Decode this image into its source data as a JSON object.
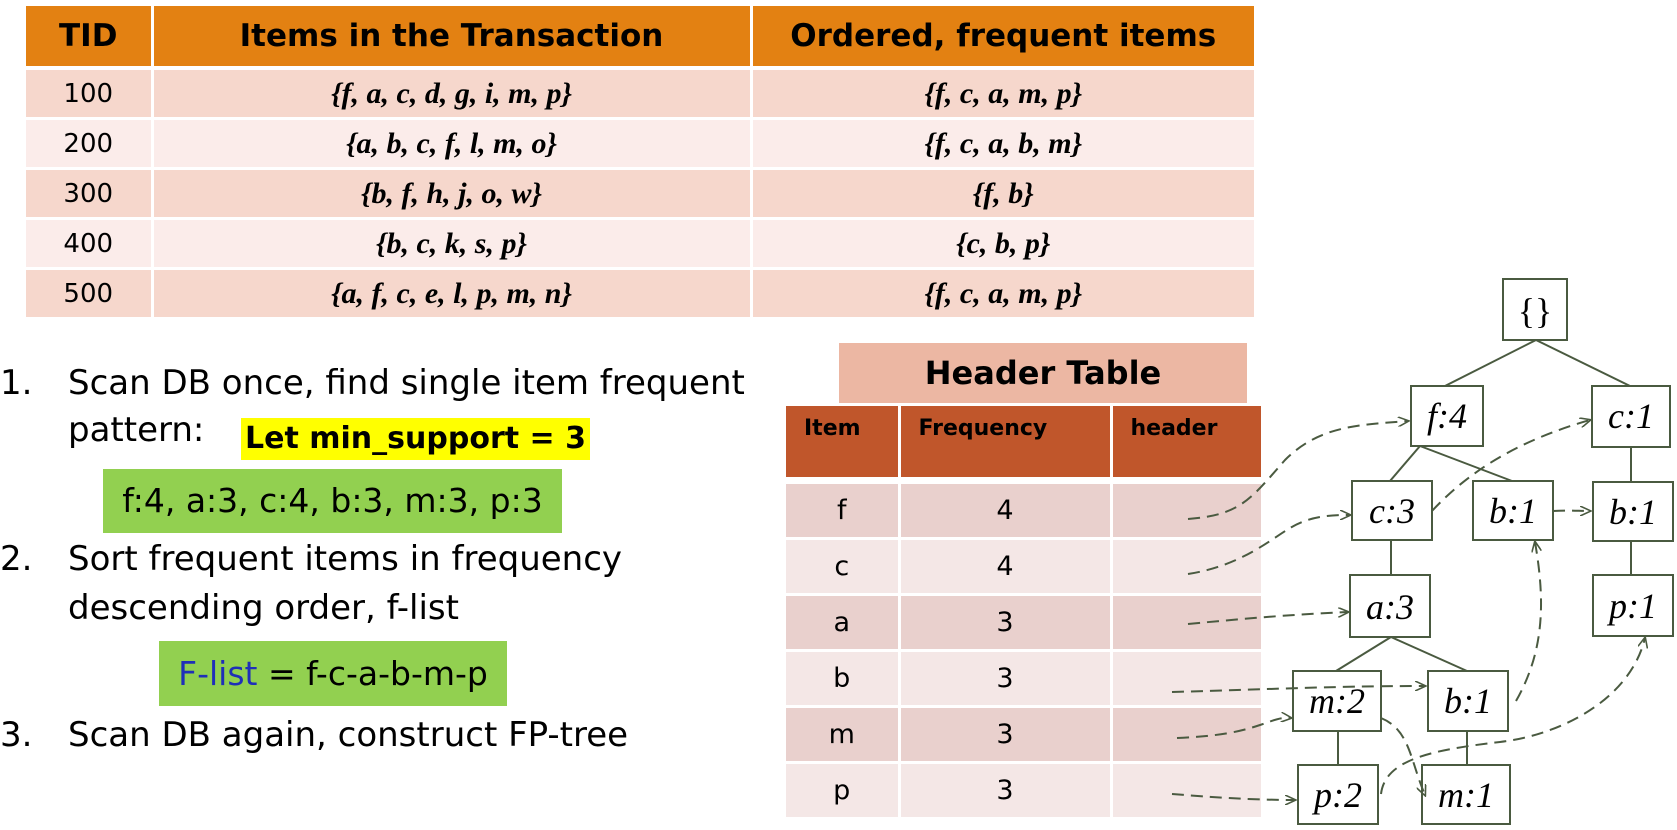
{
  "transactions": {
    "headers": [
      "TID",
      "Items in the Transaction",
      "Ordered, frequent items"
    ],
    "rows": [
      {
        "tid": "100",
        "items": "{f, a, c, d, g, i, m, p}",
        "ordered": "{f, c, a, m, p}"
      },
      {
        "tid": "200",
        "items": "{a, b, c, f, l, m, o}",
        "ordered": "{f, c, a, b, m}"
      },
      {
        "tid": "300",
        "items": "{b, f, h, j, o, w}",
        "ordered": "{f, b}"
      },
      {
        "tid": "400",
        "items": "{b, c, k, s, p}",
        "ordered": "{c, b, p}"
      },
      {
        "tid": "500",
        "items": "{a, f, c, e, l, p, m, n}",
        "ordered": "{f, c, a, m, p}"
      }
    ]
  },
  "steps": [
    {
      "num": "1.",
      "line1": "Scan DB once, find single item frequent",
      "line2": "pattern:"
    },
    {
      "num": "2.",
      "line1": "Sort frequent items in frequency",
      "line2": "descending order, f-list"
    },
    {
      "num": "3.",
      "line1": "Scan DB again, construct FP-tree"
    }
  ],
  "min_support_label": "Let min_support = 3",
  "frequent_items_text": "f:4, a:3, c:4, b:3, m:3, p:3",
  "flist": {
    "label": "F-list",
    "value": " = f-c-a-b-m-p"
  },
  "header_table": {
    "title": "Header Table",
    "columns": [
      "Item",
      "Frequency",
      "header"
    ],
    "rows": [
      {
        "item": "f",
        "frequency": "4"
      },
      {
        "item": "c",
        "frequency": "4"
      },
      {
        "item": "a",
        "frequency": "3"
      },
      {
        "item": "b",
        "frequency": "3"
      },
      {
        "item": "m",
        "frequency": "3"
      },
      {
        "item": "p",
        "frequency": "3"
      }
    ]
  },
  "tree": {
    "root": "{}",
    "nodes": {
      "f4": "f:4",
      "c1_top": "c:1",
      "c3": "c:3",
      "b1_mid": "b:1",
      "b1_right": "b:1",
      "a3": "a:3",
      "p1_right": "p:1",
      "m2": "m:2",
      "b1_low": "b:1",
      "p2": "p:2",
      "m1": "m:1"
    }
  },
  "colors": {
    "table_header": "#e38112",
    "highlight_yellow": "#ffff00",
    "highlight_green": "#92d050",
    "header_table_title": "#ecb7a3",
    "header_table_head": "#c0562b",
    "tree_line": "#4a5a40"
  }
}
